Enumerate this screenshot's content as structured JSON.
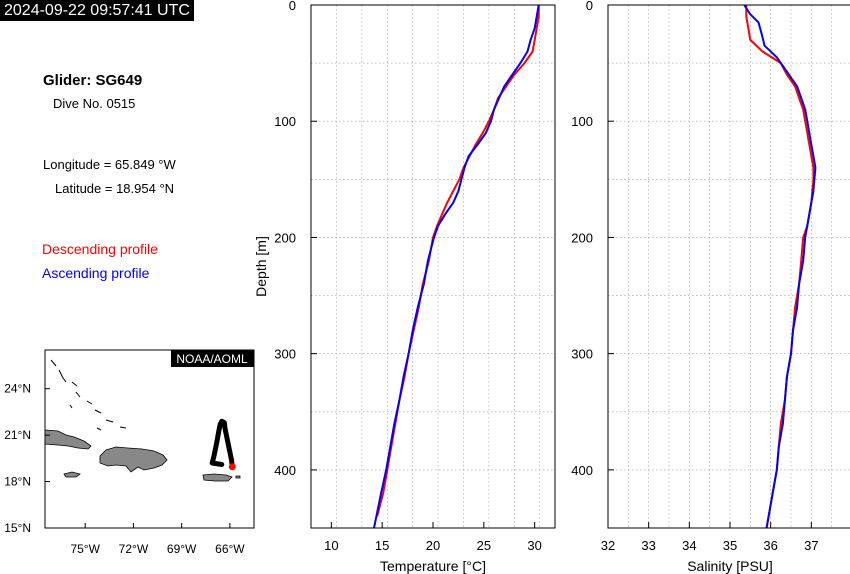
{
  "header": {
    "timestamp": "2024-09-22 09:57:41 UTC"
  },
  "info": {
    "glider": "Glider: SG649",
    "dive": "Dive No. 0515",
    "longitude": "Longitude = 65.849 °W",
    "latitude": "Latitude = 18.954 °N"
  },
  "legend": {
    "descending": "Descending profile",
    "ascending": "Ascending profile"
  },
  "colors": {
    "descending": "#ff0000",
    "ascending": "#0000ff",
    "land": "#888888",
    "track": "#000000",
    "grid": "#999999"
  },
  "map": {
    "badge": "NOAA/AOML",
    "lon_ticks": [
      "75°W",
      "72°W",
      "69°W",
      "66°W"
    ],
    "lat_ticks": [
      "24°N",
      "21°N",
      "18°N",
      "15°N"
    ],
    "lon_range": [
      -77.5,
      -64.5
    ],
    "lat_range": [
      15,
      26.5
    ],
    "track": [
      [
        -66.5,
        19.1
      ],
      [
        -67.1,
        19.2
      ],
      [
        -67.0,
        19.6
      ],
      [
        -66.9,
        20.1
      ],
      [
        -66.8,
        20.6
      ],
      [
        -66.7,
        21.2
      ],
      [
        -66.6,
        21.7
      ],
      [
        -66.5,
        21.9
      ],
      [
        -66.35,
        21.8
      ],
      [
        -66.3,
        21.4
      ],
      [
        -66.2,
        20.9
      ],
      [
        -66.1,
        20.4
      ],
      [
        -66.0,
        19.9
      ],
      [
        -65.9,
        19.4
      ],
      [
        -65.85,
        18.95
      ]
    ],
    "glider_position": [
      -65.849,
      18.954
    ]
  },
  "chart_data": [
    {
      "type": "line",
      "xlabel": "Temperature [°C]",
      "ylabel": "Depth [m]",
      "xlim": [
        8,
        32
      ],
      "ylim": [
        450,
        0
      ],
      "x_ticks": [
        10,
        15,
        20,
        25,
        30
      ],
      "y_ticks": [
        0,
        100,
        200,
        300,
        400
      ],
      "grid": true,
      "series": [
        {
          "name": "Descending profile",
          "color": "#ff0000",
          "points": [
            [
              30.4,
              0
            ],
            [
              30.4,
              10
            ],
            [
              30.2,
              20
            ],
            [
              30.0,
              30
            ],
            [
              29.8,
              40
            ],
            [
              29.0,
              50
            ],
            [
              28.0,
              60
            ],
            [
              27.2,
              70
            ],
            [
              26.4,
              80
            ],
            [
              26.0,
              90
            ],
            [
              25.5,
              100
            ],
            [
              24.9,
              110
            ],
            [
              24.2,
              120
            ],
            [
              23.6,
              130
            ],
            [
              23.0,
              140
            ],
            [
              22.6,
              150
            ],
            [
              22.0,
              160
            ],
            [
              21.4,
              170
            ],
            [
              20.9,
              180
            ],
            [
              20.4,
              190
            ],
            [
              20.0,
              200
            ],
            [
              19.6,
              220
            ],
            [
              19.0,
              240
            ],
            [
              18.6,
              260
            ],
            [
              18.1,
              280
            ],
            [
              17.6,
              300
            ],
            [
              17.2,
              320
            ],
            [
              16.7,
              340
            ],
            [
              16.3,
              360
            ],
            [
              15.9,
              380
            ],
            [
              15.5,
              400
            ],
            [
              15.1,
              420
            ],
            [
              14.5,
              440
            ]
          ]
        },
        {
          "name": "Ascending profile",
          "color": "#0000ff",
          "points": [
            [
              30.4,
              0
            ],
            [
              30.2,
              10
            ],
            [
              30.0,
              20
            ],
            [
              29.6,
              30
            ],
            [
              29.3,
              40
            ],
            [
              28.6,
              50
            ],
            [
              27.8,
              60
            ],
            [
              27.0,
              70
            ],
            [
              26.5,
              80
            ],
            [
              26.0,
              90
            ],
            [
              25.7,
              100
            ],
            [
              25.2,
              110
            ],
            [
              24.4,
              120
            ],
            [
              23.5,
              130
            ],
            [
              23.1,
              140
            ],
            [
              22.8,
              150
            ],
            [
              22.5,
              160
            ],
            [
              22.0,
              170
            ],
            [
              21.2,
              180
            ],
            [
              20.5,
              190
            ],
            [
              20.1,
              200
            ],
            [
              19.5,
              220
            ],
            [
              19.1,
              240
            ],
            [
              18.5,
              260
            ],
            [
              18.0,
              280
            ],
            [
              17.6,
              300
            ],
            [
              17.1,
              320
            ],
            [
              16.7,
              340
            ],
            [
              16.2,
              360
            ],
            [
              15.8,
              380
            ],
            [
              15.4,
              400
            ],
            [
              14.9,
              420
            ],
            [
              14.2,
              450
            ]
          ]
        }
      ]
    },
    {
      "type": "line",
      "xlabel": "Salinity [PSU]",
      "ylabel": "",
      "xlim": [
        32,
        38
      ],
      "ylim": [
        450,
        0
      ],
      "x_ticks": [
        32,
        33,
        34,
        35,
        36,
        37
      ],
      "y_ticks": [
        0,
        100,
        200,
        300,
        400
      ],
      "grid": true,
      "series": [
        {
          "name": "Descending profile",
          "color": "#ff0000",
          "points": [
            [
              35.4,
              0
            ],
            [
              35.4,
              10
            ],
            [
              35.45,
              20
            ],
            [
              35.5,
              30
            ],
            [
              35.8,
              40
            ],
            [
              36.25,
              50
            ],
            [
              36.4,
              60
            ],
            [
              36.6,
              70
            ],
            [
              36.7,
              80
            ],
            [
              36.8,
              90
            ],
            [
              36.85,
              100
            ],
            [
              36.9,
              110
            ],
            [
              36.95,
              120
            ],
            [
              37.0,
              130
            ],
            [
              37.05,
              140
            ],
            [
              37.05,
              150
            ],
            [
              37.0,
              170
            ],
            [
              36.9,
              190
            ],
            [
              36.8,
              200
            ],
            [
              36.75,
              220
            ],
            [
              36.7,
              240
            ],
            [
              36.6,
              260
            ],
            [
              36.55,
              280
            ],
            [
              36.5,
              300
            ],
            [
              36.4,
              320
            ],
            [
              36.35,
              340
            ],
            [
              36.25,
              360
            ],
            [
              36.2,
              380
            ],
            [
              36.15,
              400
            ],
            [
              36.05,
              420
            ],
            [
              35.95,
              440
            ],
            [
              35.9,
              450
            ]
          ]
        },
        {
          "name": "Ascending profile",
          "color": "#0000ff",
          "points": [
            [
              35.35,
              0
            ],
            [
              35.5,
              8
            ],
            [
              35.7,
              15
            ],
            [
              35.78,
              25
            ],
            [
              35.85,
              35
            ],
            [
              36.15,
              45
            ],
            [
              36.45,
              60
            ],
            [
              36.65,
              70
            ],
            [
              36.75,
              80
            ],
            [
              36.85,
              90
            ],
            [
              36.9,
              100
            ],
            [
              36.95,
              110
            ],
            [
              37.0,
              120
            ],
            [
              37.05,
              130
            ],
            [
              37.1,
              140
            ],
            [
              37.05,
              160
            ],
            [
              36.95,
              180
            ],
            [
              36.85,
              200
            ],
            [
              36.8,
              220
            ],
            [
              36.7,
              240
            ],
            [
              36.65,
              260
            ],
            [
              36.55,
              280
            ],
            [
              36.5,
              300
            ],
            [
              36.4,
              320
            ],
            [
              36.35,
              340
            ],
            [
              36.3,
              360
            ],
            [
              36.2,
              380
            ],
            [
              36.15,
              400
            ],
            [
              36.05,
              420
            ],
            [
              35.95,
              440
            ],
            [
              35.9,
              450
            ]
          ]
        }
      ]
    }
  ]
}
